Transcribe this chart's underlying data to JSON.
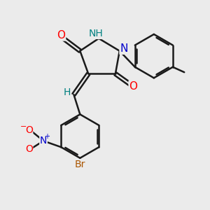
{
  "bg_color": "#ebebeb",
  "bond_color": "#1a1a1a",
  "bond_width": 1.8,
  "dbo": 0.08,
  "atom_colors": {
    "O": "#ff0000",
    "N": "#0000cc",
    "NH": "#008080",
    "Br": "#aa5500",
    "H": "#008080",
    "NO2_N": "#0000cc",
    "NO2_O": "#ff0000"
  },
  "font_size": 10,
  "fig_size": [
    3.0,
    3.0
  ],
  "dpi": 100
}
